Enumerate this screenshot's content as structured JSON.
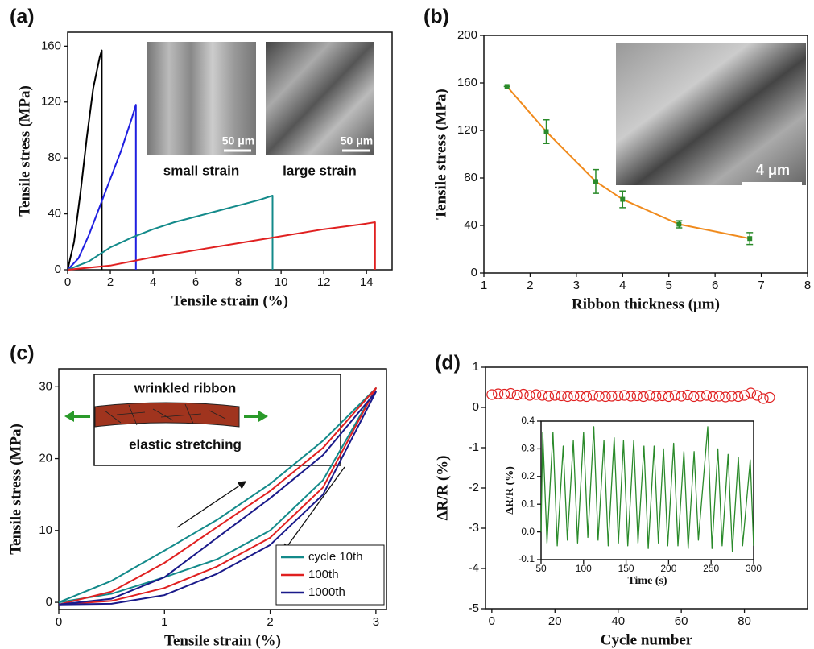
{
  "chart_data": [
    {
      "label": "(a)",
      "type": "line",
      "xlabel": "Tensile strain (%)",
      "ylabel": "Tensile stress (MPa)",
      "xlim": [
        0,
        15.2
      ],
      "ylim": [
        0,
        170
      ],
      "xticks": [
        0,
        2,
        4,
        6,
        8,
        10,
        12,
        14
      ],
      "yticks": [
        0,
        40,
        80,
        120,
        160
      ],
      "annotations": [
        "small strain",
        "large strain"
      ],
      "scale_bars": [
        "50 μm",
        "50 μm"
      ],
      "series": [
        {
          "color": "#000000",
          "x": [
            0,
            0.3,
            0.6,
            0.9,
            1.2,
            1.5,
            1.6,
            1.6
          ],
          "values": [
            0,
            20,
            55,
            95,
            130,
            152,
            157,
            0
          ]
        },
        {
          "color": "#1f1fe0",
          "x": [
            0,
            0.5,
            1,
            1.5,
            2,
            2.5,
            3,
            3.2,
            3.2
          ],
          "values": [
            0,
            8,
            25,
            45,
            65,
            85,
            108,
            118,
            0
          ]
        },
        {
          "color": "#138a8a",
          "x": [
            0,
            1,
            2,
            3,
            4,
            5,
            6,
            7,
            8,
            9,
            9.6,
            9.6
          ],
          "values": [
            0,
            6,
            16,
            23,
            29,
            34,
            38,
            42,
            46,
            50,
            53,
            0
          ]
        },
        {
          "color": "#e02020",
          "x": [
            0,
            2,
            4,
            6,
            8,
            10,
            12,
            14,
            14.4,
            14.4
          ],
          "values": [
            0,
            3,
            9,
            14,
            19,
            24,
            29,
            33,
            34,
            0
          ]
        }
      ]
    },
    {
      "label": "(b)",
      "type": "line",
      "xlabel": "Ribbon thickness (μm)",
      "ylabel": "Tensile stress (MPa)",
      "xlim": [
        1,
        8
      ],
      "ylim": [
        0,
        200
      ],
      "xticks": [
        1,
        2,
        3,
        4,
        5,
        6,
        7,
        8
      ],
      "yticks": [
        0,
        40,
        80,
        120,
        160,
        200
      ],
      "scale_bars": [
        "4 μm"
      ],
      "series": [
        {
          "color": "#f08a1c",
          "marker_color": "#2a8a2a",
          "x": [
            1.5,
            2.35,
            3.42,
            4.0,
            5.22,
            6.75
          ],
          "values": [
            157,
            119,
            77,
            62,
            41,
            29
          ],
          "errors": [
            0,
            10,
            10,
            7,
            3,
            5
          ]
        }
      ]
    },
    {
      "label": "(c)",
      "type": "line",
      "xlabel": "Tensile strain (%)",
      "ylabel": "Tensile stress (MPa)",
      "xlim": [
        0,
        3.1
      ],
      "ylim": [
        -1,
        32.5
      ],
      "xticks": [
        0,
        1,
        2,
        3
      ],
      "yticks": [
        0,
        10,
        20,
        30
      ],
      "annotations": [
        "wrinkled ribbon",
        "elastic stretching"
      ],
      "legend": "lower right",
      "series": [
        {
          "name": "cycle 10th",
          "color": "#138a8a",
          "x": [
            0,
            0.5,
            1,
            1.5,
            2,
            2.5,
            3,
            2.5,
            2,
            1.5,
            1,
            0.5,
            0
          ],
          "values": [
            0,
            3,
            7.2,
            11.5,
            16.5,
            22.5,
            29.8,
            17,
            10,
            6,
            3.5,
            1.2,
            0
          ]
        },
        {
          "name": "100th",
          "color": "#e02020",
          "x": [
            0,
            0.5,
            1,
            1.5,
            2,
            2.5,
            3,
            2.5,
            2,
            1.5,
            1,
            0.5,
            0
          ],
          "values": [
            -0.3,
            1.5,
            5.5,
            10.5,
            15.5,
            21.5,
            29.8,
            16,
            9,
            5,
            2,
            0.2,
            -0.3
          ]
        },
        {
          "name": "1000th",
          "color": "#1a1a8a",
          "x": [
            0,
            0.5,
            1,
            1.5,
            2,
            2.5,
            3,
            2.5,
            2,
            1.5,
            1,
            0.5,
            0
          ],
          "values": [
            -0.3,
            0.5,
            3.5,
            9,
            14.5,
            20.5,
            29.3,
            15,
            8,
            4,
            1,
            -0.2,
            -0.3
          ]
        }
      ]
    },
    {
      "label": "(d)",
      "type": "scatter",
      "xlabel": "Cycle number",
      "ylabel": "ΔR/R (%)",
      "xlim": [
        -2,
        100
      ],
      "ylim": [
        -5,
        1
      ],
      "xticks": [
        0,
        20,
        40,
        60,
        80
      ],
      "yticks": [
        -5,
        -4,
        -3,
        -2,
        -1,
        0,
        1
      ],
      "series": [
        {
          "color": "#e02020",
          "x": [
            0,
            2,
            4,
            6,
            8,
            10,
            12,
            14,
            16,
            18,
            20,
            22,
            24,
            26,
            28,
            30,
            32,
            34,
            36,
            38,
            40,
            42,
            44,
            46,
            48,
            50,
            52,
            54,
            56,
            58,
            60,
            62,
            64,
            66,
            68,
            70,
            72,
            74,
            76,
            78,
            80,
            82,
            84,
            86,
            88
          ],
          "values": [
            0.32,
            0.34,
            0.33,
            0.35,
            0.31,
            0.33,
            0.3,
            0.32,
            0.3,
            0.28,
            0.3,
            0.29,
            0.27,
            0.29,
            0.28,
            0.27,
            0.3,
            0.28,
            0.27,
            0.28,
            0.29,
            0.3,
            0.28,
            0.29,
            0.27,
            0.3,
            0.28,
            0.29,
            0.27,
            0.3,
            0.28,
            0.31,
            0.27,
            0.28,
            0.3,
            0.27,
            0.28,
            0.26,
            0.28,
            0.27,
            0.3,
            0.36,
            0.3,
            0.22,
            0.25
          ]
        }
      ],
      "inset": {
        "type": "line",
        "xlabel": "Time (s)",
        "ylabel": "ΔR/R (%)",
        "xlim": [
          50,
          300
        ],
        "ylim": [
          -0.1,
          0.4
        ],
        "xticks": [
          50,
          100,
          150,
          200,
          250,
          300
        ],
        "yticks": [
          -0.1,
          {
            "value": 0,
            "label": "0.0"
          },
          0.1,
          0.2,
          0.3,
          0.4
        ],
        "series": [
          {
            "color": "#2a8a2a",
            "x": [
              50,
              52,
              57,
              64,
              69,
              76,
              81,
              88,
              93,
              100,
              105,
              112,
              117,
              124,
              129,
              136,
              141,
              147,
              152,
              159,
              164,
              171,
              176,
              183,
              188,
              194,
              199,
              206,
              211,
              218,
              223,
              230,
              235,
              246,
              251,
              258,
              263,
              270,
              275,
              282,
              287,
              296,
              300
            ],
            "values": [
              0,
              0.36,
              -0.04,
              0.36,
              -0.05,
              0.31,
              -0.03,
              0.33,
              -0.04,
              0.36,
              -0.02,
              0.38,
              -0.03,
              0.33,
              -0.05,
              0.34,
              -0.04,
              0.33,
              -0.05,
              0.33,
              -0.04,
              0.31,
              -0.06,
              0.31,
              -0.04,
              0.3,
              -0.05,
              0.32,
              -0.05,
              0.29,
              -0.06,
              0.29,
              -0.03,
              0.38,
              -0.06,
              0.3,
              -0.05,
              0.28,
              -0.07,
              0.27,
              -0.05,
              0.26,
              -0.05
            ]
          }
        ]
      }
    }
  ]
}
